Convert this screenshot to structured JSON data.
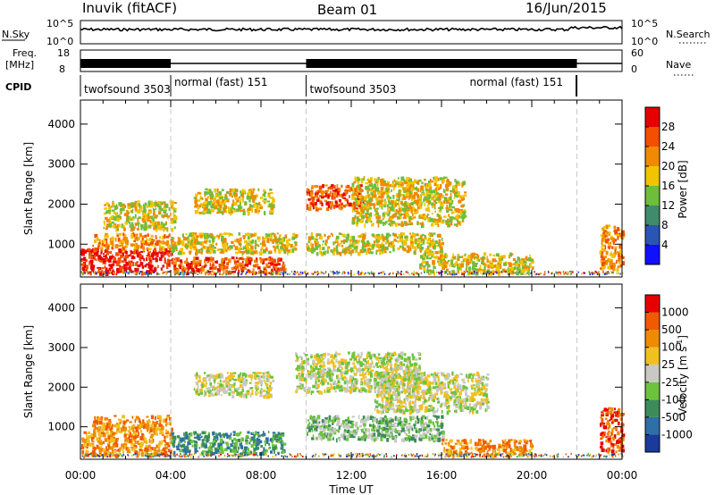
{
  "header": {
    "station": "Inuvik (fitACF)",
    "beam": "Beam 01",
    "date": "16/Jun/2015"
  },
  "noise_panel": {
    "left_label": "N.Sky",
    "right_label": "N.Search",
    "left_ticks": [
      "10^5",
      "10^0"
    ],
    "right_ticks": [
      "10^5",
      "10^0"
    ]
  },
  "freq_panel": {
    "left_label_1": "Freq.",
    "left_label_2": "[MHz]",
    "right_label": "Nave",
    "left_ticks": [
      "18",
      "8"
    ],
    "right_ticks": [
      "60",
      "0"
    ]
  },
  "cpid": {
    "label": "CPID",
    "segments": [
      {
        "start_h": 0.0,
        "text": "twofsound 3503"
      },
      {
        "start_h": 4.0,
        "text": "normal (fast) 151"
      },
      {
        "start_h": 10.0,
        "text": "twofsound 3503"
      },
      {
        "start_h": 22.0,
        "text": "normal (fast) 151"
      }
    ]
  },
  "axes": {
    "time_ticks": [
      "00:00",
      "04:00",
      "08:00",
      "12:00",
      "16:00",
      "20:00",
      "00:00"
    ],
    "xlabel": "Time UT",
    "ylabel": "Slant Range [km]",
    "range_ticks": [
      "1000",
      "2000",
      "3000",
      "4000"
    ]
  },
  "chart_data": [
    {
      "type": "heatmap",
      "name": "Power [dB]",
      "xlabel": "Time UT",
      "ylabel": "Slant Range [km]",
      "xlim": [
        0,
        24
      ],
      "ylim": [
        180,
        4600
      ],
      "colorbar": {
        "label": "Power [dB]",
        "ticks": [
          "4",
          "8",
          "12",
          "16",
          "20",
          "24",
          "28"
        ],
        "colors": [
          "#1010ff",
          "#2a55b5",
          "#3e8c6c",
          "#6ebe3a",
          "#f2c400",
          "#f08a00",
          "#f24f00",
          "#e60000"
        ]
      },
      "regions": [
        {
          "t0": 0.0,
          "t1": 4.0,
          "r0": 300,
          "r1": 900,
          "level": 7
        },
        {
          "t0": 0.5,
          "t1": 4.0,
          "r0": 900,
          "r1": 1300,
          "level": 5
        },
        {
          "t0": 1.0,
          "t1": 4.2,
          "r0": 1400,
          "r1": 2100,
          "level": 4
        },
        {
          "t0": 4.0,
          "t1": 9.0,
          "r0": 300,
          "r1": 700,
          "level": 6
        },
        {
          "t0": 4.0,
          "t1": 9.5,
          "r0": 800,
          "r1": 1300,
          "level": 4
        },
        {
          "t0": 5.0,
          "t1": 8.5,
          "r0": 1800,
          "r1": 2400,
          "level": 4
        },
        {
          "t0": 10.0,
          "t1": 12.5,
          "r0": 1900,
          "r1": 2500,
          "level": 6
        },
        {
          "t0": 10.0,
          "t1": 16.0,
          "r0": 800,
          "r1": 1300,
          "level": 4
        },
        {
          "t0": 12.0,
          "t1": 17.0,
          "r0": 1500,
          "r1": 2700,
          "level": 4
        },
        {
          "t0": 15.0,
          "t1": 20.0,
          "r0": 300,
          "r1": 800,
          "level": 4
        },
        {
          "t0": 23.0,
          "t1": 24.0,
          "r0": 400,
          "r1": 1500,
          "level": 5
        }
      ]
    },
    {
      "type": "heatmap",
      "name": "Velocity [m s^-1]",
      "xlabel": "Time UT",
      "ylabel": "Slant Range [km]",
      "xlim": [
        0,
        24
      ],
      "ylim": [
        180,
        4600
      ],
      "colorbar": {
        "label": "Velocity [m s",
        "ticks": [
          "1000",
          "500",
          "100",
          "25",
          "-25",
          "-100",
          "-500",
          "-1000"
        ],
        "colors": [
          "#1a3a9c",
          "#2f6fa8",
          "#3c8c5a",
          "#6cc43c",
          "#c8c8c4",
          "#f0c020",
          "#f08a00",
          "#f05a00",
          "#e80000"
        ]
      },
      "regions": [
        {
          "t0": 0.0,
          "t1": 4.0,
          "r0": 300,
          "r1": 900,
          "level": 6
        },
        {
          "t0": 0.5,
          "t1": 4.0,
          "r0": 900,
          "r1": 1300,
          "level": 6
        },
        {
          "t0": 4.0,
          "t1": 9.0,
          "r0": 350,
          "r1": 900,
          "level": 2
        },
        {
          "t0": 5.0,
          "t1": 8.5,
          "r0": 1800,
          "r1": 2400,
          "level": 4
        },
        {
          "t0": 9.5,
          "t1": 15.0,
          "r0": 1900,
          "r1": 2900,
          "level": 4
        },
        {
          "t0": 10.0,
          "t1": 16.0,
          "r0": 700,
          "r1": 1300,
          "level": 3
        },
        {
          "t0": 13.0,
          "t1": 18.0,
          "r0": 1400,
          "r1": 2400,
          "level": 4
        },
        {
          "t0": 16.0,
          "t1": 20.0,
          "r0": 300,
          "r1": 700,
          "level": 6
        },
        {
          "t0": 23.0,
          "t1": 24.0,
          "r0": 400,
          "r1": 1500,
          "level": 7
        }
      ]
    }
  ]
}
